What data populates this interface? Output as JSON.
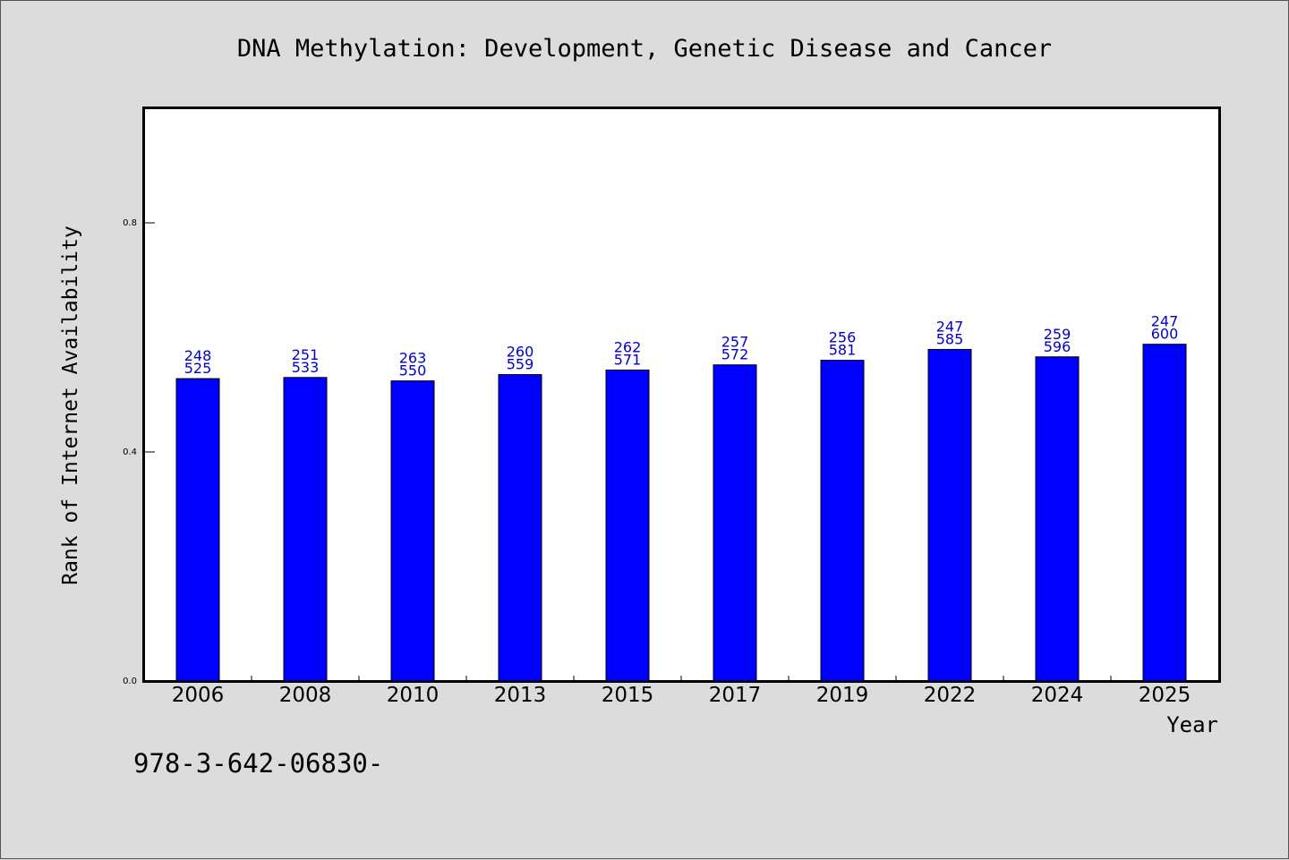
{
  "chart_data": {
    "type": "bar",
    "title": "DNA Methylation: Development, Genetic Disease and Cancer",
    "xlabel": "Year",
    "ylabel": "Rank of Internet Availability",
    "footnote": "978-3-642-06830-",
    "categories": [
      "2006",
      "2008",
      "2010",
      "2013",
      "2015",
      "2017",
      "2019",
      "2022",
      "2024",
      "2025"
    ],
    "values": [
      0.528,
      0.53,
      0.524,
      0.535,
      0.543,
      0.552,
      0.56,
      0.579,
      0.566,
      0.588
    ],
    "label_top": [
      "248",
      "251",
      "263",
      "260",
      "262",
      "257",
      "256",
      "247",
      "259",
      "247"
    ],
    "label_bottom": [
      "525",
      "533",
      "550",
      "559",
      "571",
      "572",
      "581",
      "585",
      "596",
      "600"
    ],
    "yticks": [
      0.0,
      0.4,
      0.8
    ],
    "ytick_labels": [
      "0.0",
      "0.4",
      "0.8"
    ],
    "ylim": [
      0,
      1.0
    ],
    "grid": false,
    "colors": {
      "bar": "#0000ff",
      "label": "#0000cc",
      "background": "#dcdcdc",
      "plot_bg": "#ffffff"
    }
  }
}
